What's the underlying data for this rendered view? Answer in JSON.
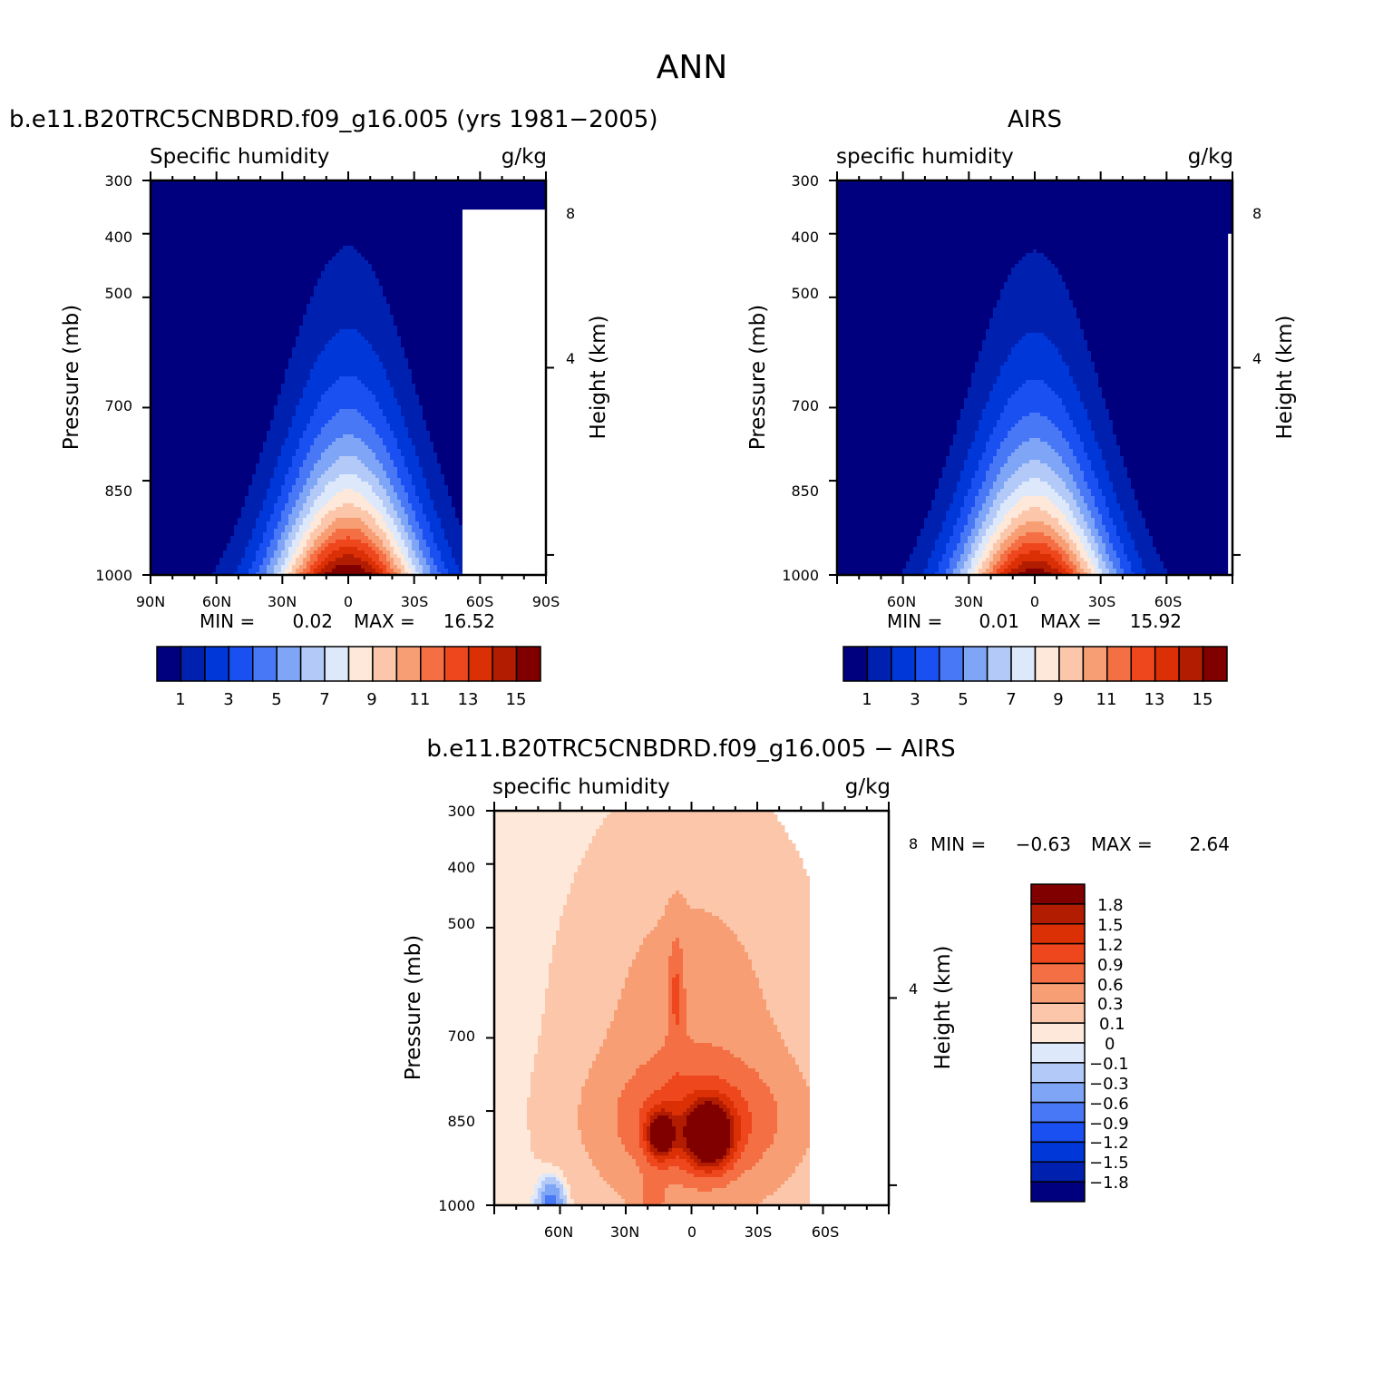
{
  "figure_title": "ANN",
  "chart_data": [
    {
      "type": "heatmap",
      "dataset_title": "b.e11.B20TRC5CNBDRD.f09_g16.005 (yrs 1981−2005)",
      "variable": "Specific humidity",
      "units": "g/kg",
      "ylabel": "Pressure (mb)",
      "y2label": "Height (km)",
      "y_ticks": [
        "300",
        "400",
        "500",
        "700",
        "850",
        "1000"
      ],
      "y2_ticks": [
        "8",
        "4"
      ],
      "x_ticks": [
        "90N",
        "60N",
        "30N",
        "0",
        "30S",
        "60S",
        "90S"
      ],
      "x_range": [
        90,
        -90
      ],
      "y_range": [
        1000,
        300
      ],
      "y_scale": "log",
      "min_label": "MIN =",
      "min_value": "0.02",
      "max_label": "MAX =",
      "max_value": "16.52",
      "peak": 16.52,
      "center_lat": 0,
      "colorbar_labels": [
        "1",
        "3",
        "5",
        "7",
        "9",
        "11",
        "13",
        "15"
      ],
      "colorbar_levels": [
        0,
        1,
        2,
        3,
        4,
        5,
        6,
        7,
        8,
        9,
        10,
        11,
        12,
        13,
        14,
        15,
        16
      ],
      "colorbar_orientation": "horizontal"
    },
    {
      "type": "heatmap",
      "dataset_title": "AIRS",
      "variable": "specific humidity",
      "units": "g/kg",
      "ylabel": "Pressure (mb)",
      "y2label": "Height (km)",
      "y_ticks": [
        "300",
        "400",
        "500",
        "700",
        "850",
        "1000"
      ],
      "y2_ticks": [
        "8",
        "4"
      ],
      "x_ticks": [
        "60N",
        "30N",
        "0",
        "30S",
        "60S"
      ],
      "x_range": [
        90,
        -90
      ],
      "y_range": [
        1000,
        300
      ],
      "y_scale": "log",
      "min_label": "MIN =",
      "min_value": "0.01",
      "max_label": "MAX =",
      "max_value": "15.92",
      "peak": 15.92,
      "center_lat": 0,
      "colorbar_labels": [
        "1",
        "3",
        "5",
        "7",
        "9",
        "11",
        "13",
        "15"
      ],
      "colorbar_levels": [
        0,
        1,
        2,
        3,
        4,
        5,
        6,
        7,
        8,
        9,
        10,
        11,
        12,
        13,
        14,
        15,
        16
      ],
      "colorbar_orientation": "horizontal"
    },
    {
      "type": "heatmap",
      "dataset_title": "b.e11.B20TRC5CNBDRD.f09_g16.005 − AIRS",
      "variable": "specific humidity",
      "units": "g/kg",
      "ylabel": "Pressure (mb)",
      "y2label": "Height (km)",
      "y_ticks": [
        "300",
        "400",
        "500",
        "700",
        "850",
        "1000"
      ],
      "y2_ticks": [
        "8",
        "4"
      ],
      "x_ticks": [
        "60N",
        "30N",
        "0",
        "30S",
        "60S"
      ],
      "x_range": [
        90,
        -90
      ],
      "y_range": [
        1000,
        300
      ],
      "y_scale": "log",
      "min_label": "MIN =",
      "min_value": "−0.63",
      "max_label": "MAX =",
      "max_value": "2.64",
      "colorbar_labels": [
        "1.8",
        "1.5",
        "1.2",
        "0.9",
        "0.6",
        "0.3",
        "0.1",
        "0",
        "−0.1",
        "−0.3",
        "−0.6",
        "−0.9",
        "−1.2",
        "−1.5",
        "−1.8"
      ],
      "colorbar_orientation": "vertical"
    }
  ],
  "colors": {
    "palette": [
      "#00007f",
      "#0020b0",
      "#0037d8",
      "#1a4ff2",
      "#4878f5",
      "#7fa5f7",
      "#b3c9f8",
      "#dde9fb",
      "#fde8d9",
      "#fbc6aa",
      "#f89e74",
      "#f56f44",
      "#ee461d",
      "#db2f06",
      "#b21c00",
      "#800000"
    ],
    "diff_positive": [
      "#fde8d9",
      "#fbc6aa",
      "#f89e74",
      "#f56f44",
      "#ee461d",
      "#db2f06",
      "#b21c00",
      "#800000"
    ],
    "diff_negative": [
      "#dde9fb",
      "#b3c9f8",
      "#7fa5f7",
      "#4878f5"
    ]
  }
}
